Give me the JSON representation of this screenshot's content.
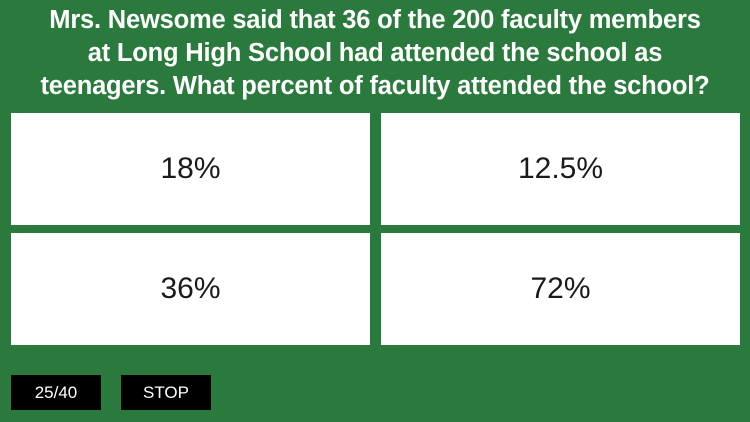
{
  "question": {
    "line1": "Mrs. Newsome said that 36 of the 200 faculty members",
    "line2": "at Long High School had attended the school as",
    "line3": "teenagers. What percent of faculty attended the school?"
  },
  "answers": [
    {
      "label": "18%"
    },
    {
      "label": "12.5%"
    },
    {
      "label": "36%"
    },
    {
      "label": "72%"
    }
  ],
  "footer": {
    "counter": "25/40",
    "stop_label": "STOP"
  },
  "colors": {
    "background": "#2a7a3d",
    "card": "#ffffff",
    "button": "#000000"
  }
}
